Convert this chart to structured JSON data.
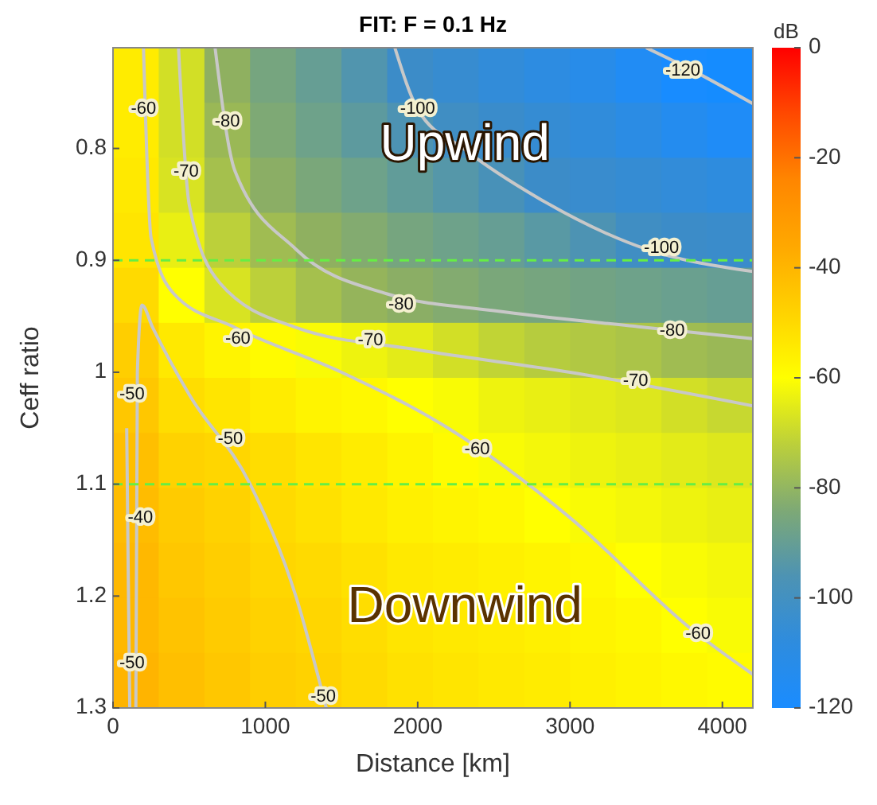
{
  "chart_data": {
    "type": "heatmap",
    "title": "FIT: F = 0.1 Hz",
    "xlabel": "Distance [km]",
    "ylabel": "Ceff ratio",
    "clabel": "dB",
    "xlim": [
      0,
      4200
    ],
    "xticks": [
      0,
      1000,
      2000,
      3000,
      4000
    ],
    "ylim": [
      1.3,
      0.71
    ],
    "yticks": [
      0.8,
      0.9,
      1,
      1.1,
      1.2,
      1.3
    ],
    "clim": [
      -120,
      0
    ],
    "cticks": [
      -120,
      -100,
      -80,
      -60,
      -40,
      -20,
      0
    ],
    "cells": [
      [
        -55,
        -68,
        -80,
        -86,
        -90,
        -95,
        -100,
        -103,
        -106,
        -109,
        -112,
        -116,
        -121,
        -123
      ],
      [
        -55,
        -68,
        -78,
        -84,
        -88,
        -92,
        -96,
        -99,
        -101,
        -104,
        -107,
        -110,
        -114,
        -117
      ],
      [
        -54,
        -67,
        -76,
        -81,
        -85,
        -88,
        -91,
        -94,
        -97,
        -100,
        -102,
        -104,
        -106,
        -108
      ],
      [
        -53,
        -64,
        -72,
        -77,
        -80,
        -83,
        -86,
        -88,
        -90,
        -93,
        -96,
        -99,
        -100,
        -101
      ],
      [
        -50,
        -60,
        -67,
        -72,
        -76,
        -79,
        -81,
        -83,
        -85,
        -86,
        -87,
        -88,
        -89,
        -90
      ],
      [
        -47,
        -54,
        -57,
        -59,
        -61,
        -63,
        -65,
        -68,
        -71,
        -73,
        -74,
        -75,
        -77,
        -78
      ],
      [
        -45,
        -51,
        -53,
        -55,
        -57,
        -58,
        -60,
        -61,
        -63,
        -64,
        -65,
        -66,
        -68,
        -70
      ],
      [
        -43,
        -48,
        -49,
        -51,
        -53,
        -55,
        -57,
        -59,
        -61,
        -62,
        -63,
        -64,
        -65,
        -66
      ],
      [
        -42,
        -46,
        -48,
        -50,
        -52,
        -54,
        -56,
        -57,
        -58,
        -60,
        -61,
        -62,
        -63,
        -64
      ],
      [
        -41,
        -45,
        -47,
        -49,
        -50,
        -52,
        -54,
        -55,
        -56,
        -57,
        -58,
        -60,
        -61,
        -62
      ],
      [
        -41,
        -44,
        -46,
        -48,
        -49,
        -51,
        -53,
        -54,
        -55,
        -56,
        -57,
        -58,
        -60,
        -61
      ],
      [
        -40,
        -43,
        -45,
        -47,
        -48,
        -50,
        -52,
        -53,
        -54,
        -55,
        -56,
        -57,
        -58,
        -59
      ]
    ],
    "series": [
      {
        "type": "line",
        "color": "#c8c8c8",
        "x": [
          3500,
          3800,
          4200
        ],
        "values": [
          0.71,
          0.73,
          0.76
        ]
      },
      {
        "type": "line",
        "color": "#c8c8c8",
        "x": [
          1850,
          2000,
          2300,
          2800,
          3500,
          4200
        ],
        "values": [
          0.71,
          0.765,
          0.8,
          0.845,
          0.89,
          0.91
        ]
      },
      {
        "type": "line",
        "color": "#c8c8c8",
        "x": [
          670,
          800,
          1200,
          1800,
          2500,
          3500,
          4200
        ],
        "values": [
          0.71,
          0.82,
          0.89,
          0.93,
          0.945,
          0.96,
          0.97
        ]
      },
      {
        "type": "line",
        "color": "#c8c8c8",
        "x": [
          430,
          500,
          700,
          1200,
          2000,
          3000,
          4200
        ],
        "values": [
          0.71,
          0.85,
          0.92,
          0.96,
          0.98,
          1.0,
          1.03
        ]
      },
      {
        "type": "line",
        "color": "#c8c8c8",
        "x": [
          200,
          250,
          400,
          800,
          1500,
          2200,
          3000,
          3800,
          4200
        ],
        "values": [
          0.71,
          0.88,
          0.93,
          0.96,
          1.0,
          1.05,
          1.13,
          1.23,
          1.27
        ]
      },
      {
        "type": "line",
        "color": "#c8c8c8",
        "x": [
          150,
          160,
          190,
          260,
          500,
          900,
          1200,
          1400
        ],
        "values": [
          1.3,
          1.0,
          0.94,
          0.96,
          1.02,
          1.1,
          1.2,
          1.3
        ]
      },
      {
        "type": "line",
        "color": "#c8c8c8",
        "x": [
          90,
          100,
          110
        ],
        "values": [
          1.05,
          1.18,
          1.3
        ]
      }
    ],
    "ref_lines": [
      {
        "axis": "y",
        "value": 0.9,
        "color": "#66ee44",
        "line_style": "dashed"
      },
      {
        "axis": "y",
        "value": 1.1,
        "color": "#66ee44",
        "line_style": "dashed"
      }
    ],
    "annotations": [
      "Upwind",
      "Downwind",
      {
        "text": "-60",
        "x": 200,
        "y": 0.765
      },
      {
        "text": "-80",
        "x": 750,
        "y": 0.776
      },
      {
        "text": "-70",
        "x": 480,
        "y": 0.821
      },
      {
        "text": "-100",
        "x": 2000,
        "y": 0.765
      },
      {
        "text": "-120",
        "x": 3740,
        "y": 0.731
      },
      {
        "text": "-100",
        "x": 3600,
        "y": 0.889
      },
      {
        "text": "-80",
        "x": 3670,
        "y": 0.963
      },
      {
        "text": "-70",
        "x": 3430,
        "y": 1.008
      },
      {
        "text": "-80",
        "x": 1890,
        "y": 0.94
      },
      {
        "text": "-70",
        "x": 1690,
        "y": 0.972
      },
      {
        "text": "-60",
        "x": 820,
        "y": 0.97
      },
      {
        "text": "-60",
        "x": 2390,
        "y": 1.069
      },
      {
        "text": "-60",
        "x": 3840,
        "y": 1.234
      },
      {
        "text": "-50",
        "x": 125,
        "y": 1.02
      },
      {
        "text": "-50",
        "x": 770,
        "y": 1.06
      },
      {
        "text": "-40",
        "x": 180,
        "y": 1.13
      },
      {
        "text": "-50",
        "x": 125,
        "y": 1.26
      },
      {
        "text": "-50",
        "x": 1380,
        "y": 1.29
      }
    ]
  }
}
